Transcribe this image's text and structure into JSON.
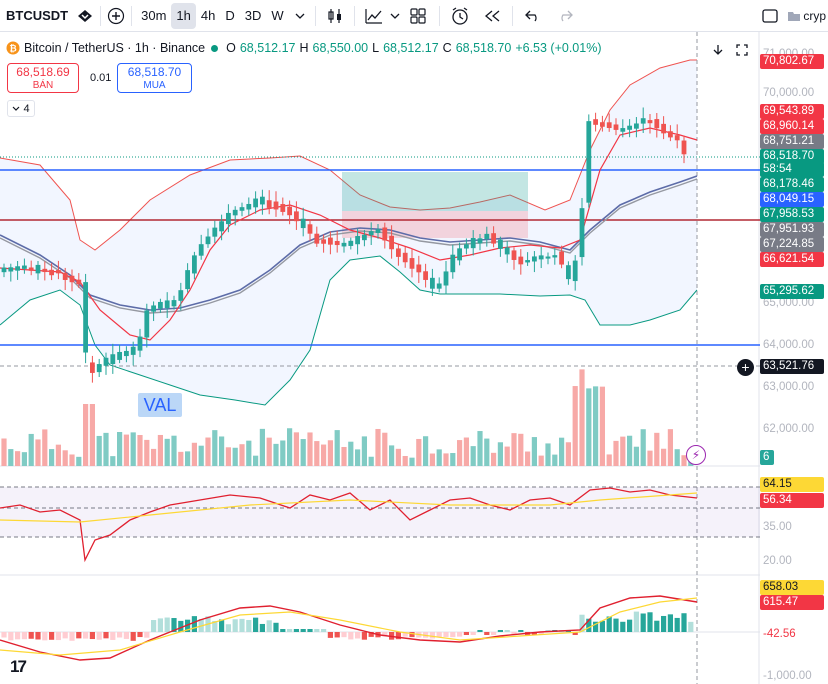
{
  "toolbar": {
    "symbol": "BTCUSDT",
    "intervals": [
      "30m",
      "1h",
      "4h",
      "D",
      "3D",
      "W"
    ],
    "active_interval": "1h",
    "right_text": "cryp"
  },
  "legend": {
    "name": "Bitcoin / TetherUS · 1h · Binance",
    "o_label": "O",
    "o": "68,512.17",
    "h_label": "H",
    "h": "68,550.00",
    "l_label": "L",
    "l": "68,512.17",
    "c_label": "C",
    "c": "68,518.70",
    "change": "+6.53 (+0.01%)"
  },
  "trade": {
    "sell_price": "68,518.69",
    "sell_label": "BÁN",
    "spread": "0.01",
    "buy_price": "68,518.70",
    "buy_label": "MUA"
  },
  "indicators_count": "4",
  "annotation": {
    "val": "VAL"
  },
  "price_axis": {
    "ticks": [
      "71,000.00",
      "70,000.00",
      "65,000.00",
      "64,000.00",
      "63,000.00",
      "62,000.00"
    ],
    "labels": [
      {
        "text": "70,802.67",
        "color": "#f23645"
      },
      {
        "text": "69,543.89",
        "color": "#f23645"
      },
      {
        "text": "68,960.14",
        "color": "#f23645"
      },
      {
        "text": "68,751.21",
        "color": "#787b86"
      },
      {
        "text": "68,518.70",
        "color": "#089981"
      },
      {
        "text": "58:54",
        "color": "#089981"
      },
      {
        "text": "68,178.46",
        "color": "#089981"
      },
      {
        "text": "68,049.15",
        "color": "#2962ff"
      },
      {
        "text": "67,958.53",
        "color": "#089981"
      },
      {
        "text": "67,951.93",
        "color": "#787b86"
      },
      {
        "text": "67,224.85",
        "color": "#787b86"
      },
      {
        "text": "66,621.54",
        "color": "#f23645"
      },
      {
        "text": "65,295.62",
        "color": "#089981"
      },
      {
        "text": "63,521.76",
        "color": "#131722"
      }
    ],
    "volume_label": "6"
  },
  "rsi_axis": {
    "labels": [
      {
        "text": "64.15",
        "color": "#fdd835"
      },
      {
        "text": "56.34",
        "color": "#f23645"
      }
    ],
    "ticks": [
      "35.00",
      "20.00"
    ]
  },
  "macd_axis": {
    "labels": [
      {
        "text": "658.03",
        "color": "#fdd835"
      },
      {
        "text": "615.47",
        "color": "#f23645"
      },
      {
        "text": "-42.56",
        "color": "#ffffff"
      }
    ],
    "ticks": [
      "-1,000.00"
    ]
  },
  "colors": {
    "up": "#26a69a",
    "down": "#ef5350",
    "accent": "#2962ff"
  }
}
